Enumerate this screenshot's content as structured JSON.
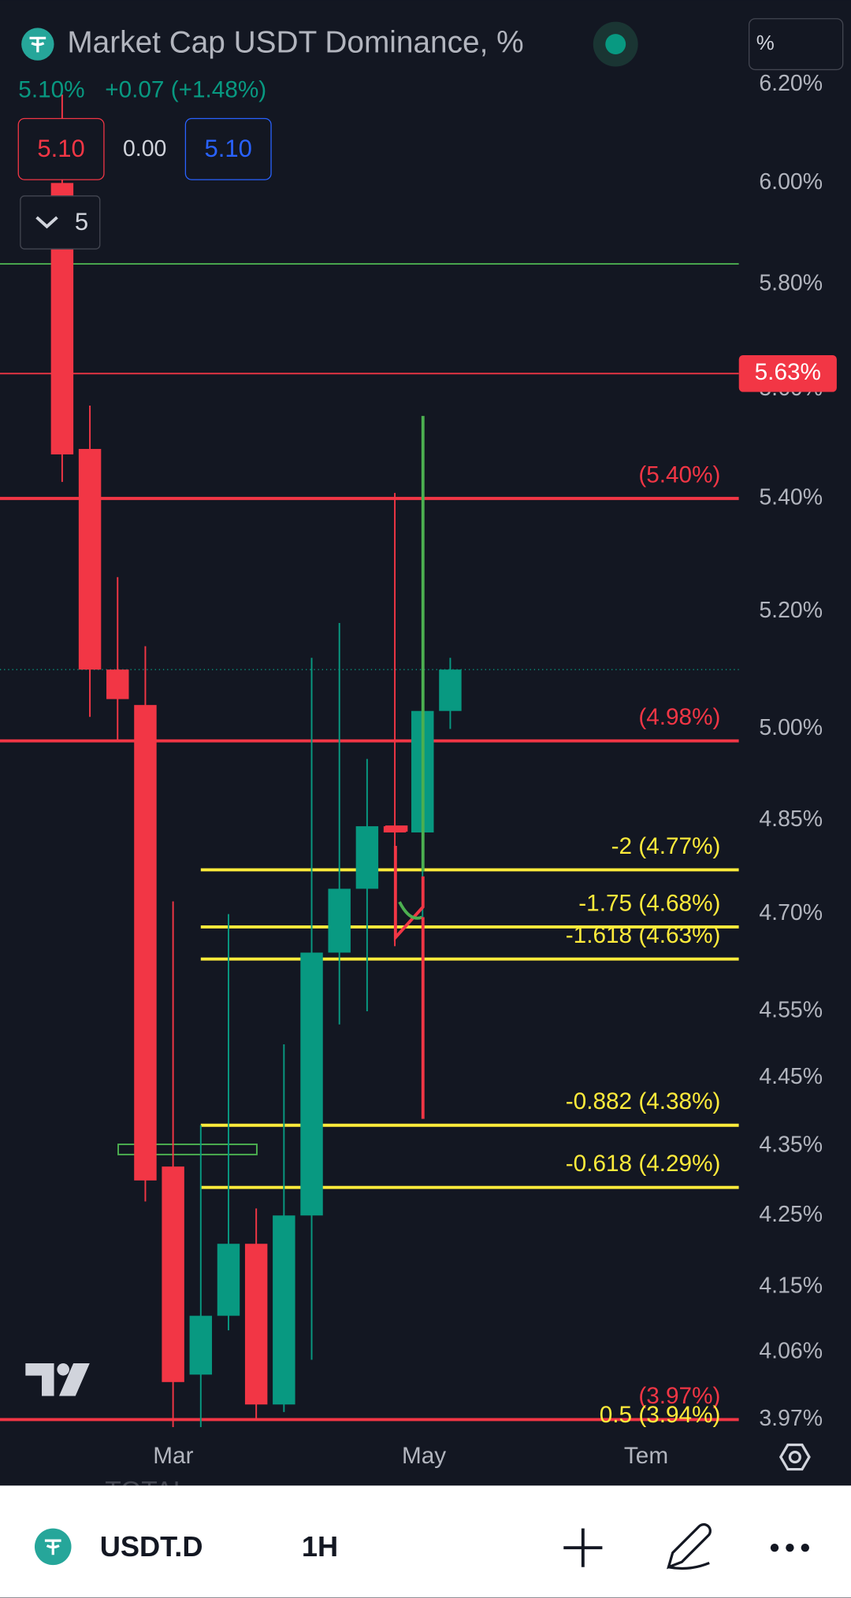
{
  "header": {
    "title": "Market Cap USDT Dominance, %",
    "unit_button": "%",
    "last": "5.10%",
    "change": "+0.07 (+1.48%)",
    "sell": "5.10",
    "spread": "0.00",
    "buy": "5.10",
    "indicators_count": "5"
  },
  "chart": {
    "type": "candlestick",
    "log_scale": true,
    "up_color": "#089981",
    "down_color": "#f23645",
    "ylim": [
      3.95,
      6.36
    ],
    "yticks": [
      {
        "value": 6.2,
        "label": "6.20%"
      },
      {
        "value": 6.0,
        "label": "6.00%"
      },
      {
        "value": 5.8,
        "label": "5.80%"
      },
      {
        "value": 5.6,
        "label": "5.60%"
      },
      {
        "value": 5.4,
        "label": "5.40%"
      },
      {
        "value": 5.2,
        "label": "5.20%"
      },
      {
        "value": 5.0,
        "label": "5.00%"
      },
      {
        "value": 4.85,
        "label": "4.85%"
      },
      {
        "value": 4.7,
        "label": "4.70%"
      },
      {
        "value": 4.55,
        "label": "4.55%"
      },
      {
        "value": 4.45,
        "label": "4.45%"
      },
      {
        "value": 4.35,
        "label": "4.35%"
      },
      {
        "value": 4.25,
        "label": "4.25%"
      },
      {
        "value": 4.15,
        "label": "4.15%"
      },
      {
        "value": 4.06,
        "label": "4.06%"
      },
      {
        "value": 3.97,
        "label": "3.97%"
      }
    ],
    "open": [
      6.0,
      5.49,
      5.1,
      5.04,
      4.32,
      4.03,
      4.11,
      4.21,
      3.99,
      4.25,
      4.64,
      4.74,
      4.84,
      4.83,
      5.03
    ],
    "high": [
      6.18,
      5.57,
      5.26,
      5.14,
      4.72,
      4.38,
      4.7,
      4.26,
      4.5,
      5.12,
      5.18,
      4.95,
      5.41,
      5.55,
      5.12
    ],
    "low": [
      5.43,
      5.02,
      4.98,
      4.27,
      3.96,
      3.96,
      4.09,
      3.97,
      3.98,
      4.05,
      4.53,
      4.55,
      4.65,
      4.39,
      5.0
    ],
    "close": [
      5.48,
      5.1,
      5.05,
      4.3,
      4.02,
      4.11,
      4.21,
      3.99,
      4.25,
      4.64,
      4.74,
      4.84,
      4.83,
      5.03,
      5.1
    ],
    "x_labels": [
      "Mar",
      "May",
      "Tem"
    ],
    "current_price": 5.1,
    "price_tag": {
      "value": 5.63,
      "label": "5.63%"
    },
    "green_line": 5.84,
    "levels": [
      {
        "value": 5.4,
        "label": "(5.40%)",
        "color": "#f23645"
      },
      {
        "value": 4.98,
        "label": "(4.98%)",
        "color": "#f23645"
      },
      {
        "value": 3.97,
        "label": "(3.97%)",
        "color": "#f23645"
      }
    ],
    "fib_color": "#ffeb3b",
    "fib_levels": [
      {
        "value": 4.77,
        "label": "-2 (4.77%)"
      },
      {
        "value": 4.68,
        "label": "-1.75 (4.68%)"
      },
      {
        "value": 4.63,
        "label": "-1.618 (4.63%)"
      },
      {
        "value": 4.38,
        "label": "-0.882 (4.38%)"
      },
      {
        "value": 4.29,
        "label": "-0.618 (4.29%)"
      },
      {
        "value": 3.94,
        "label": "0.5 (3.94%)"
      }
    ]
  },
  "ghost_text": "TOTAL",
  "toolbar": {
    "symbol": "USDT.D",
    "interval": "1H"
  }
}
